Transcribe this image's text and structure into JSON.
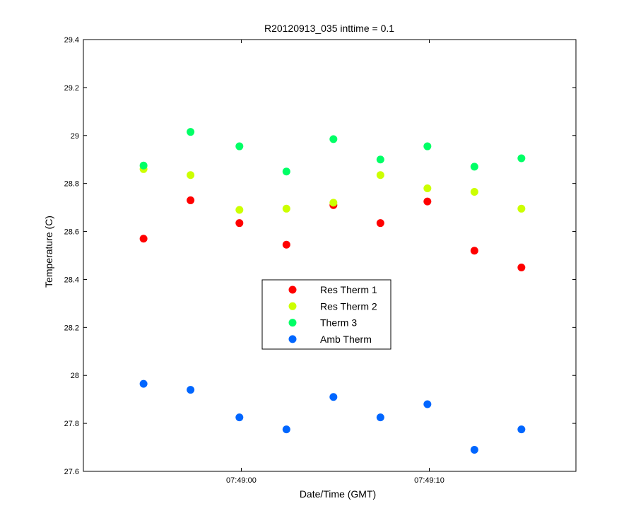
{
  "chart_data": {
    "type": "scatter",
    "title": "R20120913_035 inttime = 0.1",
    "xlabel": "Date/Time (GMT)",
    "ylabel": "Temperature (C)",
    "x_unit": "time (hh:mm:ss GMT)",
    "xlim": [
      "07:48:51.6",
      "07:49:17.8"
    ],
    "ylim": [
      27.6,
      29.4
    ],
    "x_ticks": [
      {
        "value": "07:49:00",
        "label": "07:49:00"
      },
      {
        "value": "07:49:10",
        "label": "07:49:10"
      }
    ],
    "y_ticks": [
      "27.6",
      "27.8",
      "28",
      "28.2",
      "28.4",
      "28.6",
      "28.8",
      "29",
      "29.2",
      "29.4"
    ],
    "x": [
      "07:48:54.8",
      "07:48:57.3",
      "07:48:59.9",
      "07:49:02.4",
      "07:49:04.9",
      "07:49:07.4",
      "07:49:09.9",
      "07:49:12.4",
      "07:49:14.9"
    ],
    "series": [
      {
        "name": "Res Therm 1",
        "color": "#ff0000",
        "values": [
          28.57,
          28.73,
          28.635,
          28.545,
          28.71,
          28.635,
          28.725,
          28.52,
          28.45
        ]
      },
      {
        "name": "Res Therm 2",
        "color": "#ccff00",
        "values": [
          28.86,
          28.835,
          28.69,
          28.695,
          28.72,
          28.835,
          28.78,
          28.765,
          28.695
        ]
      },
      {
        "name": "Therm 3",
        "color": "#00ff66",
        "values": [
          28.875,
          29.015,
          28.955,
          28.85,
          28.985,
          28.9,
          28.955,
          28.87,
          28.905
        ]
      },
      {
        "name": "Amb Therm",
        "color": "#0066ff",
        "values": [
          27.965,
          27.94,
          27.825,
          27.775,
          27.91,
          27.825,
          27.88,
          27.69,
          27.775
        ]
      }
    ],
    "grid": false,
    "legend_position": "center"
  }
}
